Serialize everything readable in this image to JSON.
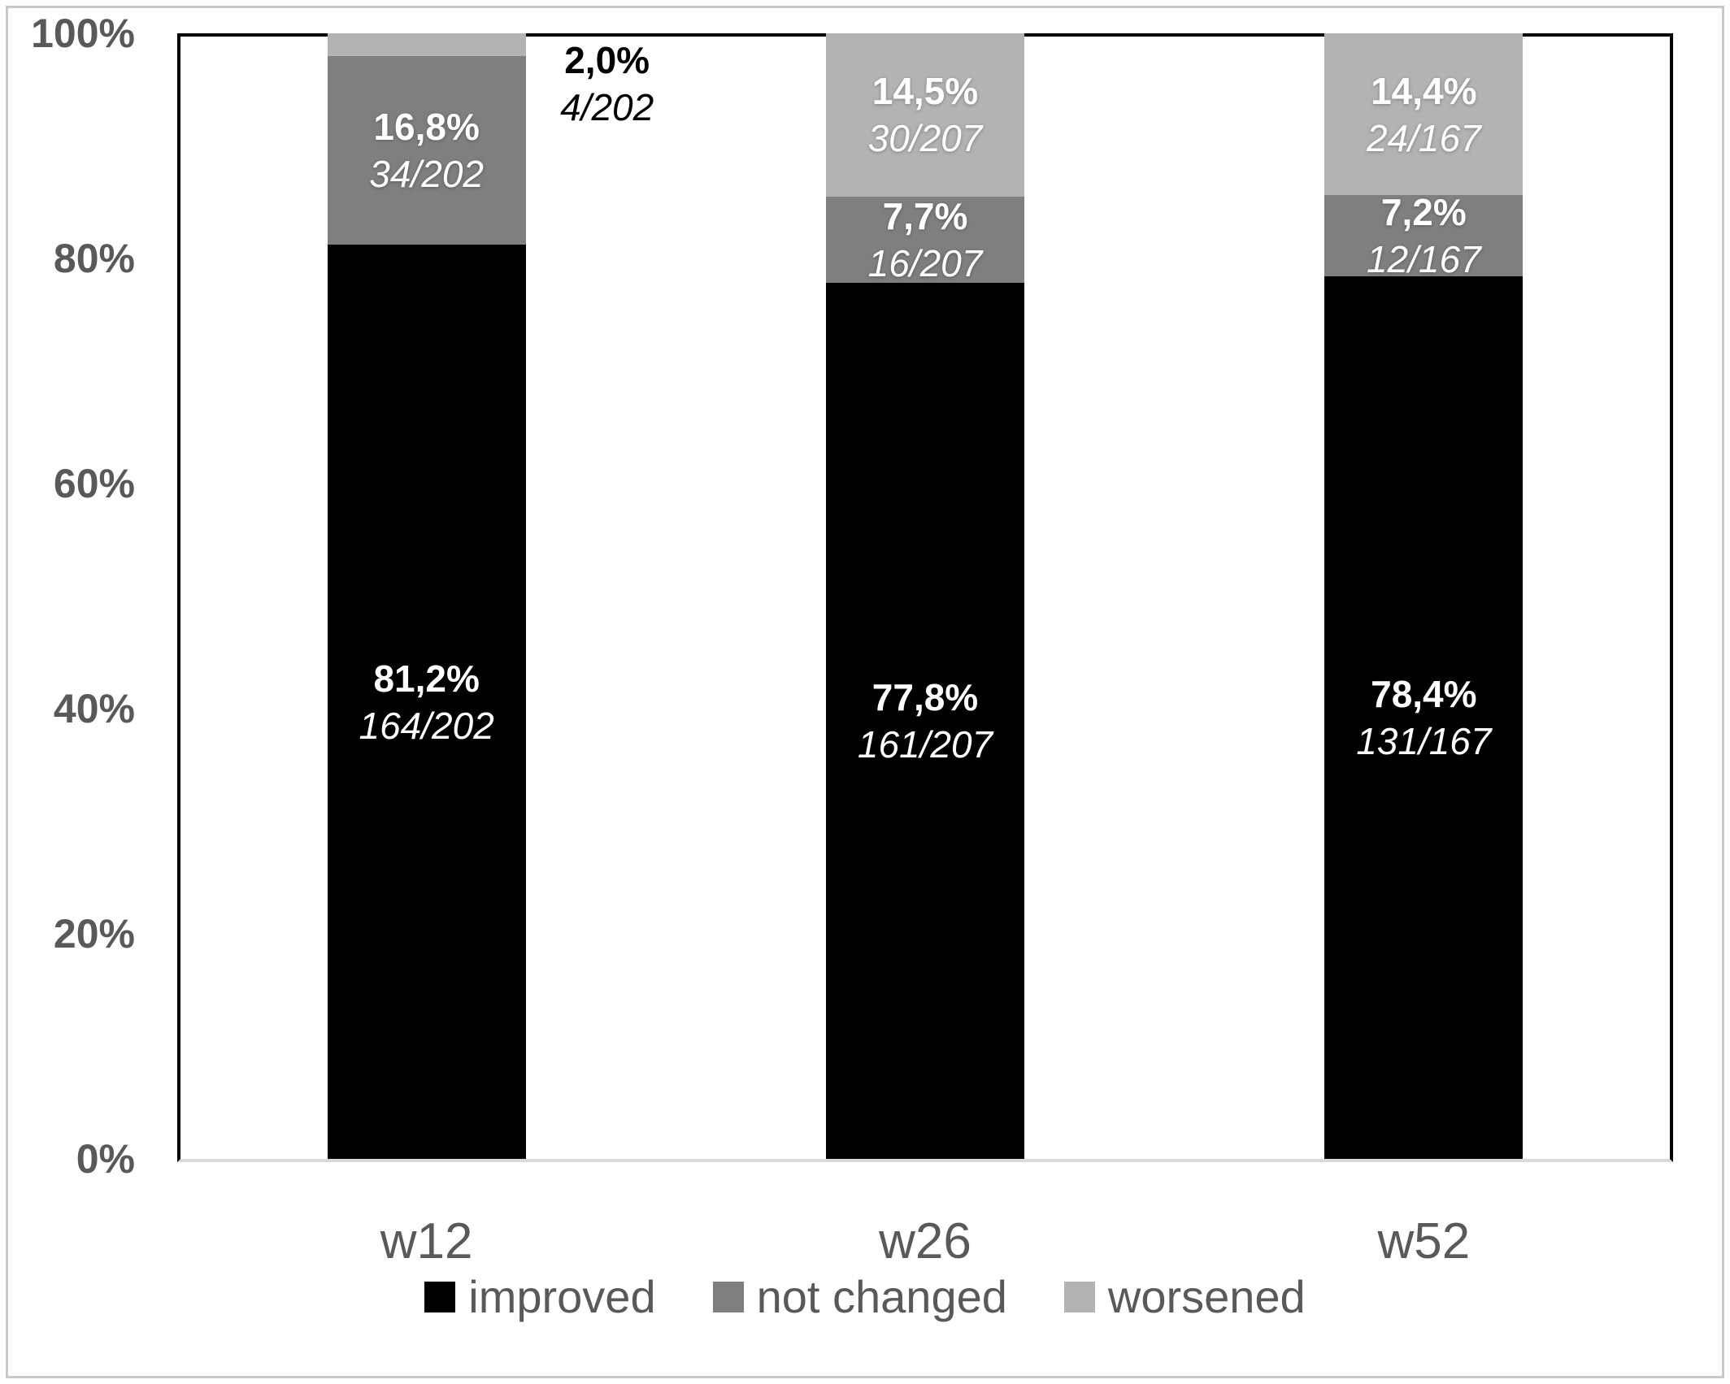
{
  "chart_data": {
    "type": "bar",
    "stacked": true,
    "orientation": "vertical",
    "title": "",
    "categories": [
      "w12",
      "w26",
      "w52"
    ],
    "series": [
      {
        "name": "improved",
        "color": "#000000",
        "values": [
          81.2,
          77.8,
          78.4
        ],
        "pct_labels": [
          "81,2%",
          "77,8%",
          "78,4%"
        ],
        "frac_labels": [
          "164/202",
          "161/207",
          "131/167"
        ]
      },
      {
        "name": "not changed",
        "color": "#7f7f7f",
        "values": [
          16.8,
          7.7,
          7.2
        ],
        "pct_labels": [
          "16,8%",
          "7,7%",
          "7,2%"
        ],
        "frac_labels": [
          "34/202",
          "16/207",
          "12/167"
        ]
      },
      {
        "name": "worsened",
        "color": "#b3b3b3",
        "values": [
          2.0,
          14.5,
          14.4
        ],
        "pct_labels": [
          "2,0%",
          "14,5%",
          "14,4%"
        ],
        "frac_labels": [
          "4/202",
          "30/207",
          "24/167"
        ]
      }
    ],
    "outside_label": {
      "series": "worsened",
      "category": "w12",
      "reason": "segment too small, label placed right of bar",
      "text_color": "#000000"
    },
    "y_axis": {
      "min": 0,
      "max": 100,
      "tick_values": [
        0,
        20,
        40,
        60,
        80,
        100
      ],
      "tick_labels": [
        "0%",
        "20%",
        "40%",
        "60%",
        "80%",
        "100%"
      ]
    },
    "legend": {
      "position": "bottom",
      "entries": [
        "improved",
        "not changed",
        "worsened"
      ]
    },
    "grid": "off",
    "label_text_color_inside": "#ffffff",
    "axis_text_color": "#595959",
    "plot_border_color": "#000000",
    "baseline_color": "#d9d9d9"
  }
}
